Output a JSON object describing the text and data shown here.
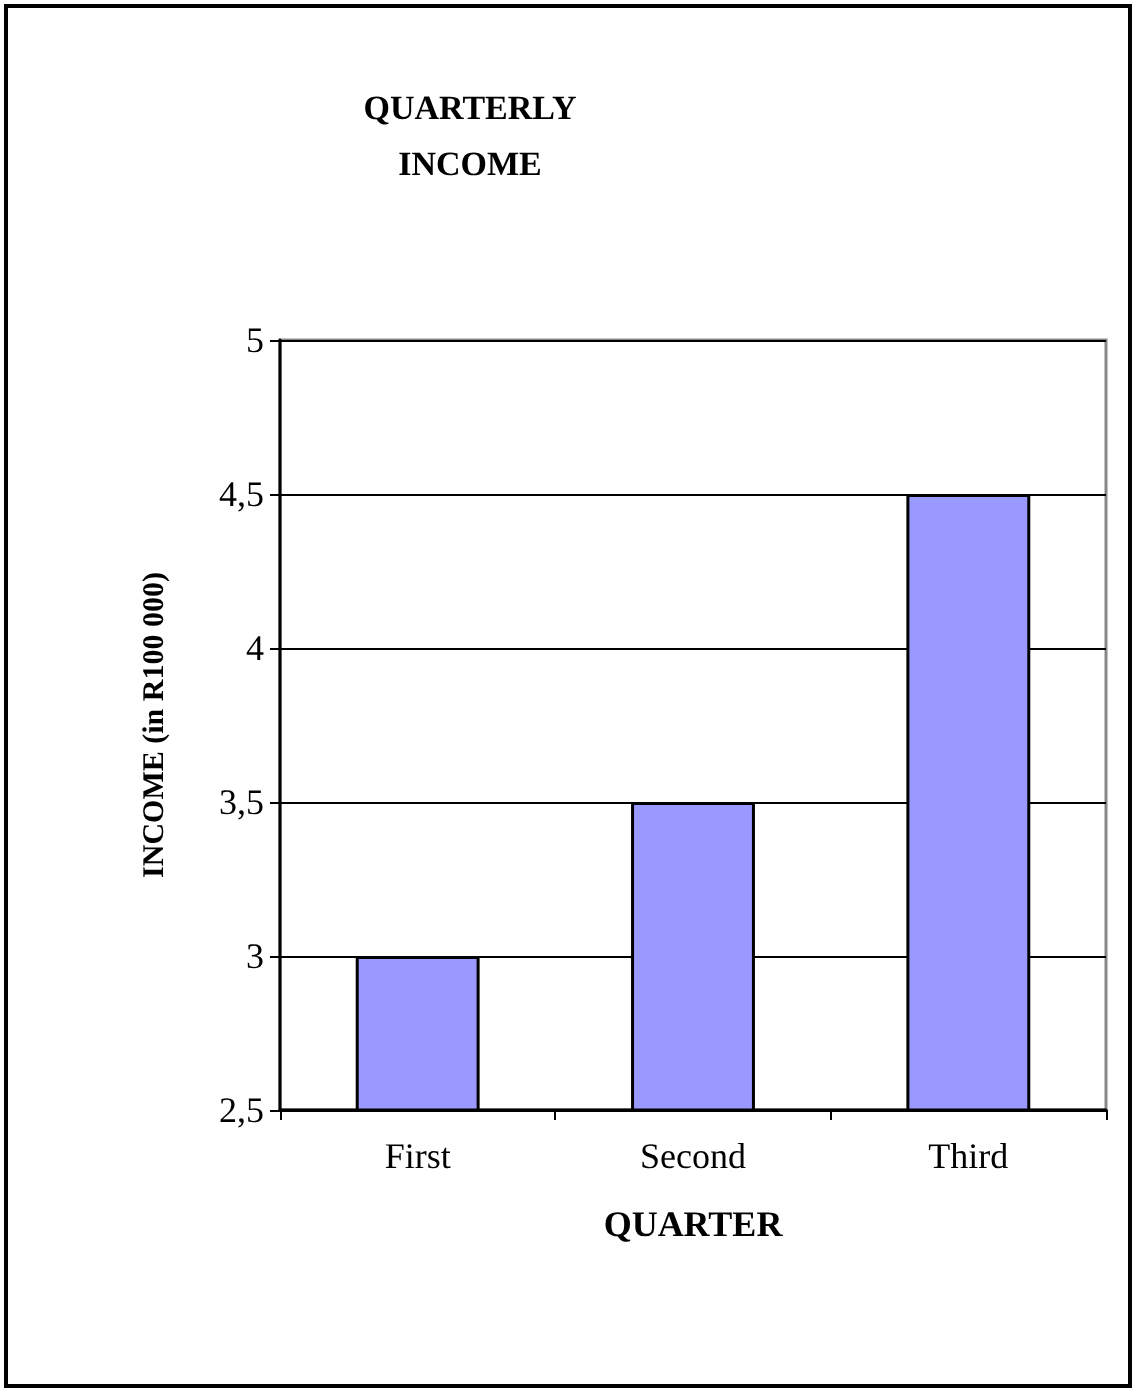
{
  "chart_data": {
    "type": "bar",
    "title": "QUARTERLY\nINCOME",
    "xlabel": "QUARTER",
    "ylabel": "INCOME (in R100 000)",
    "categories": [
      "First",
      "Second",
      "Third"
    ],
    "values": [
      3,
      3.5,
      4.5
    ],
    "color": "#9999ff",
    "ylim": [
      2.5,
      5
    ],
    "yticks": [
      {
        "value": 2.5,
        "label": "2,5"
      },
      3,
      {
        "value": 3.5,
        "label": "3,5"
      },
      4,
      {
        "value": 4.5,
        "label": "4,5"
      },
      5
    ],
    "grid": "y"
  }
}
